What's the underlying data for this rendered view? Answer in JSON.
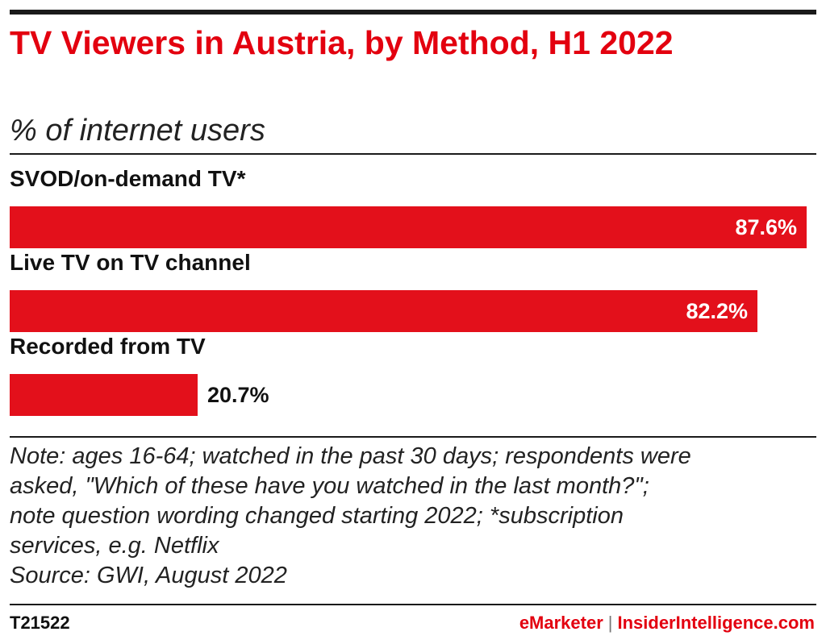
{
  "header": {
    "title": "TV Viewers in Austria, by Method, H1 2022",
    "subtitle": "% of internet users"
  },
  "chart_data": {
    "type": "bar",
    "orientation": "horizontal",
    "categories": [
      "SVOD/on-demand TV*",
      "Live TV on TV channel",
      "Recorded from TV"
    ],
    "values": [
      87.6,
      82.2,
      20.7
    ],
    "value_labels": [
      "87.6%",
      "82.2%",
      "20.7%"
    ],
    "xlim": [
      0,
      87.6
    ],
    "grid": false,
    "legend": "none",
    "bar_color": "#e3101b"
  },
  "note": {
    "lines": [
      "Note: ages 16-64; watched in the past 30 days; respondents were",
      "asked, \"Which of these have you watched in the last month?\";",
      "note question wording changed starting 2022; *subscription",
      "services, e.g. Netflix",
      "Source: GWI, August 2022"
    ]
  },
  "footer": {
    "chart_id": "T21522",
    "brand_left": "eMarketer",
    "separator": "|",
    "brand_right": "InsiderIntelligence.com"
  }
}
